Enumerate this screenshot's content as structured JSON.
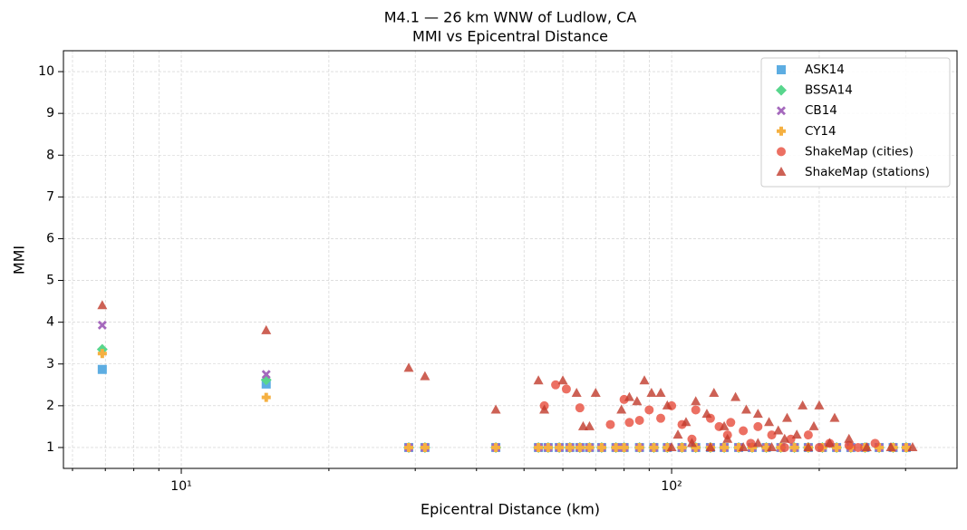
{
  "chart_data": {
    "type": "scatter",
    "title": "M4.1 — 26 km WNW of Ludlow, CA",
    "subtitle": "MMI vs Epicentral Distance",
    "x_label": "Epicentral Distance (km)",
    "y_label": "MMI",
    "x_scale": "log",
    "grid": true,
    "legend": "upper right",
    "xlim": [
      5.75,
      382
    ],
    "ylim": [
      0.5,
      10.5
    ],
    "xticks": [
      {
        "value": 10,
        "label": "10¹"
      },
      {
        "value": 100,
        "label": "10²"
      }
    ],
    "xticks_minor": [
      6,
      7,
      8,
      9,
      20,
      30,
      40,
      50,
      60,
      70,
      80,
      90,
      200,
      300
    ],
    "yticks": [
      1,
      2,
      3,
      4,
      5,
      6,
      7,
      8,
      9,
      10
    ],
    "x": [
      6.9,
      14.9,
      29.1,
      31.4,
      43.8,
      53.5,
      56,
      59,
      62,
      65,
      68,
      72,
      77,
      80,
      86,
      92,
      98,
      105,
      112,
      120,
      128,
      137,
      146,
      156,
      167,
      178,
      190,
      203,
      217,
      232,
      248,
      265,
      283,
      301
    ],
    "series": [
      {
        "name": "ASK14",
        "color": "#5dade2",
        "marker": "square",
        "values": [
          2.87,
          2.52,
          1,
          1,
          1,
          1,
          1,
          1,
          1,
          1,
          1,
          1,
          1,
          1,
          1,
          1,
          1,
          1,
          1,
          1,
          1,
          1,
          1,
          1,
          1,
          1,
          1,
          1,
          1,
          1,
          1,
          1,
          1,
          1
        ]
      },
      {
        "name": "BSSA14",
        "color": "#58d68d",
        "marker": "diamond",
        "values": [
          3.35,
          2.62,
          1,
          1,
          1,
          1,
          1,
          1,
          1,
          1,
          1,
          1,
          1,
          1,
          1,
          1,
          1,
          1,
          1,
          1,
          1,
          1,
          1,
          1,
          1,
          1,
          1,
          1,
          1,
          1,
          1,
          1,
          1,
          1
        ]
      },
      {
        "name": "CB14",
        "color": "#a569bd",
        "marker": "x",
        "values": [
          3.93,
          2.75,
          1,
          1,
          1,
          1,
          1,
          1,
          1,
          1,
          1,
          1,
          1,
          1,
          1,
          1,
          1,
          1,
          1,
          1,
          1,
          1,
          1,
          1,
          1,
          1,
          1,
          1,
          1,
          1,
          1,
          1,
          1,
          1
        ]
      },
      {
        "name": "CY14",
        "color": "#f5b041",
        "marker": "plus",
        "values": [
          3.25,
          2.2,
          1,
          1,
          1,
          1,
          1,
          1,
          1,
          1,
          1,
          1,
          1,
          1,
          1,
          1,
          1,
          1,
          1,
          1,
          1,
          1,
          1,
          1,
          1,
          1,
          1,
          1,
          1,
          1,
          1,
          1,
          1,
          1
        ]
      },
      {
        "name": "ShakeMap (cities)",
        "color": "#e74c3c",
        "marker": "circle",
        "x": [
          55,
          58,
          61,
          65,
          75,
          80,
          82,
          86,
          90,
          95,
          100,
          105,
          112,
          120,
          125,
          132,
          140,
          150,
          160,
          175,
          190,
          210,
          230,
          260,
          110,
          130,
          145,
          170,
          200,
          240
        ],
        "values": [
          2.0,
          2.5,
          2.4,
          1.95,
          1.55,
          2.15,
          1.6,
          1.65,
          1.9,
          1.7,
          2.0,
          1.55,
          1.9,
          1.7,
          1.5,
          1.6,
          1.4,
          1.5,
          1.3,
          1.2,
          1.3,
          1.1,
          1.05,
          1.1,
          1.2,
          1.3,
          1.1,
          1.0,
          1.0,
          1.0
        ]
      },
      {
        "name": "ShakeMap (stations)",
        "color": "#c0392b",
        "marker": "triangle",
        "x": [
          6.9,
          14.9,
          29.1,
          31.4,
          43.8,
          53.5,
          55,
          60,
          64,
          66,
          68,
          70,
          79,
          82,
          85,
          88,
          91,
          95,
          98,
          103,
          107,
          112,
          118,
          122,
          128,
          135,
          142,
          150,
          158,
          165,
          172,
          180,
          185,
          195,
          200,
          215,
          230,
          250,
          280,
          310,
          100,
          110,
          120,
          130,
          140,
          150,
          160,
          170,
          190,
          210
        ],
        "values": [
          4.4,
          3.8,
          2.9,
          2.7,
          1.9,
          2.6,
          1.9,
          2.6,
          2.3,
          1.5,
          1.5,
          2.3,
          1.9,
          2.2,
          2.1,
          2.6,
          2.3,
          2.3,
          2.0,
          1.3,
          1.6,
          2.1,
          1.8,
          2.3,
          1.5,
          2.2,
          1.9,
          1.8,
          1.6,
          1.4,
          1.7,
          1.3,
          2.0,
          1.5,
          2.0,
          1.7,
          1.2,
          1.0,
          1.0,
          1.0,
          1.0,
          1.1,
          1.0,
          1.2,
          1.0,
          1.1,
          1.0,
          1.2,
          1.0,
          1.1
        ]
      }
    ]
  }
}
